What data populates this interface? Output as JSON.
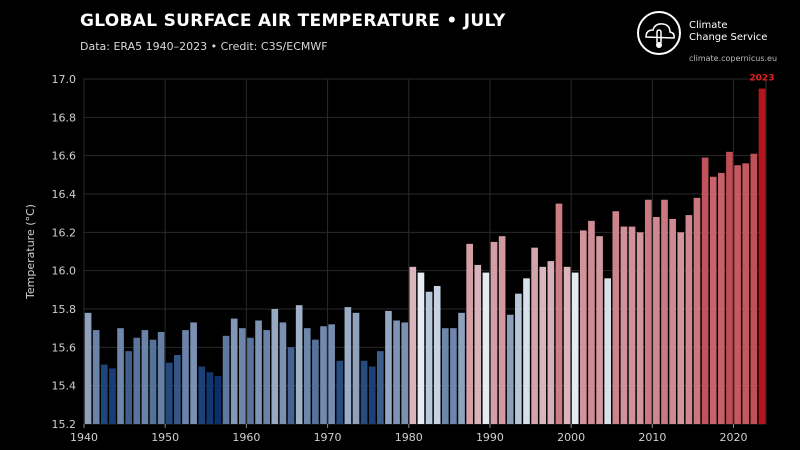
{
  "header": {
    "title": "GLOBAL SURFACE AIR TEMPERATURE • JULY",
    "subtitle": "Data: ERA5 1940–2023 • Credit: C3S/ECMWF"
  },
  "logo": {
    "line1": "Climate",
    "line2": "Change Service",
    "url": "climate.copernicus.eu"
  },
  "chart_data": {
    "type": "bar",
    "title": "GLOBAL SURFACE AIR TEMPERATURE • JULY",
    "xlabel": "",
    "ylabel": "Temperature (°C)",
    "ylim": [
      15.2,
      17.0
    ],
    "yticks": [
      15.2,
      15.4,
      15.6,
      15.8,
      16.0,
      16.2,
      16.4,
      16.6,
      16.8,
      17.0
    ],
    "ytick_labels": [
      "15.2",
      "15.4",
      "15.6",
      "15.8",
      "16.0",
      "16.2",
      "16.4",
      "16.6",
      "16.8",
      "17.0"
    ],
    "xticks": [
      1940,
      1950,
      1960,
      1970,
      1980,
      1990,
      2000,
      2010,
      2020
    ],
    "xtick_labels": [
      "1940",
      "1950",
      "1960",
      "1970",
      "1980",
      "1990",
      "2000",
      "2010",
      "2020"
    ],
    "grid": true,
    "highlight": {
      "year": 2023,
      "label": "2023"
    },
    "color_scale": {
      "low": "#08306b",
      "mid": "#e8eef6",
      "high": "#b2161c",
      "midpoint": 16.0
    },
    "years": [
      1940,
      1941,
      1942,
      1943,
      1944,
      1945,
      1946,
      1947,
      1948,
      1949,
      1950,
      1951,
      1952,
      1953,
      1954,
      1955,
      1956,
      1957,
      1958,
      1959,
      1960,
      1961,
      1962,
      1963,
      1964,
      1965,
      1966,
      1967,
      1968,
      1969,
      1970,
      1971,
      1972,
      1973,
      1974,
      1975,
      1976,
      1977,
      1978,
      1979,
      1980,
      1981,
      1982,
      1983,
      1984,
      1985,
      1986,
      1987,
      1988,
      1989,
      1990,
      1991,
      1992,
      1993,
      1994,
      1995,
      1996,
      1997,
      1998,
      1999,
      2000,
      2001,
      2002,
      2003,
      2004,
      2005,
      2006,
      2007,
      2008,
      2009,
      2010,
      2011,
      2012,
      2013,
      2014,
      2015,
      2016,
      2017,
      2018,
      2019,
      2020,
      2021,
      2022,
      2023
    ],
    "values": [
      15.78,
      15.69,
      15.51,
      15.49,
      15.7,
      15.58,
      15.65,
      15.69,
      15.64,
      15.68,
      15.52,
      15.56,
      15.69,
      15.73,
      15.5,
      15.47,
      15.45,
      15.66,
      15.75,
      15.7,
      15.65,
      15.74,
      15.69,
      15.8,
      15.73,
      15.6,
      15.82,
      15.7,
      15.64,
      15.71,
      15.72,
      15.53,
      15.81,
      15.78,
      15.53,
      15.5,
      15.58,
      15.79,
      15.74,
      15.73,
      16.02,
      15.99,
      15.89,
      15.92,
      15.7,
      15.7,
      15.78,
      16.14,
      16.03,
      15.99,
      16.15,
      16.18,
      15.77,
      15.88,
      15.96,
      16.12,
      16.02,
      16.05,
      16.35,
      16.02,
      15.99,
      16.21,
      16.26,
      16.18,
      15.96,
      16.31,
      16.23,
      16.23,
      16.2,
      16.37,
      16.28,
      16.37,
      16.27,
      16.2,
      16.29,
      16.38,
      16.59,
      16.49,
      16.51,
      16.62,
      16.55,
      16.56,
      16.61,
      16.95
    ]
  }
}
